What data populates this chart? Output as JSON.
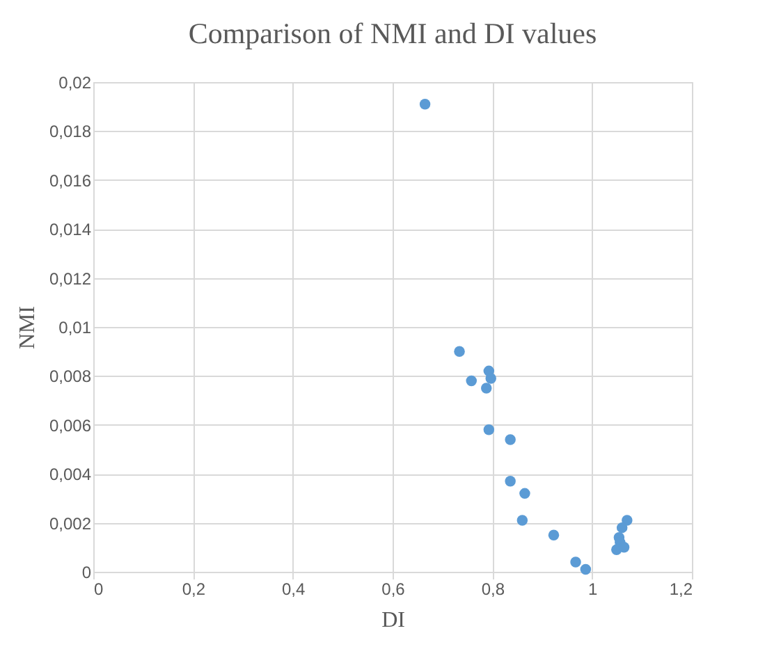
{
  "chart_data": {
    "type": "scatter",
    "title": "Comparison of NMI and DI values",
    "xlabel": "DI",
    "ylabel": "NMI",
    "x": [
      0.665,
      0.734,
      0.758,
      0.793,
      0.797,
      0.788,
      0.793,
      0.836,
      0.836,
      0.865,
      0.86,
      0.923,
      0.967,
      0.987,
      1.07,
      1.06,
      1.054,
      1.056,
      1.049,
      1.064
    ],
    "series": [
      {
        "color": "#5b9bd5",
        "values": [
          0.0191,
          0.009,
          0.0078,
          0.0082,
          0.0079,
          0.0075,
          0.0058,
          0.0054,
          0.0037,
          0.0032,
          0.0021,
          0.0015,
          0.0004,
          0.0001,
          0.0021,
          0.0018,
          0.0014,
          0.0012,
          0.0009,
          0.001
        ]
      }
    ],
    "xlim": [
      0,
      1.2
    ],
    "ylim": [
      0,
      0.02
    ],
    "xticks": [
      0,
      {
        "value": 0.2,
        "label": "0,2"
      },
      {
        "value": 0.4,
        "label": "0,4"
      },
      {
        "value": 0.6,
        "label": "0,6"
      },
      {
        "value": 0.8,
        "label": "0,8"
      },
      1,
      {
        "value": 1.2,
        "label": "1,2"
      }
    ],
    "yticks": [
      0,
      {
        "value": 0.002,
        "label": "0,002"
      },
      {
        "value": 0.004,
        "label": "0,004"
      },
      {
        "value": 0.006,
        "label": "0,006"
      },
      {
        "value": 0.008,
        "label": "0,008"
      },
      {
        "value": 0.01,
        "label": "0,01"
      },
      {
        "value": 0.012,
        "label": "0,012"
      },
      {
        "value": 0.014,
        "label": "0,014"
      },
      {
        "value": 0.016,
        "label": "0,016"
      },
      {
        "value": 0.018,
        "label": "0,018"
      },
      {
        "value": 0.02,
        "label": "0,02"
      }
    ],
    "grid": true,
    "marker": "circle",
    "legend": false
  }
}
